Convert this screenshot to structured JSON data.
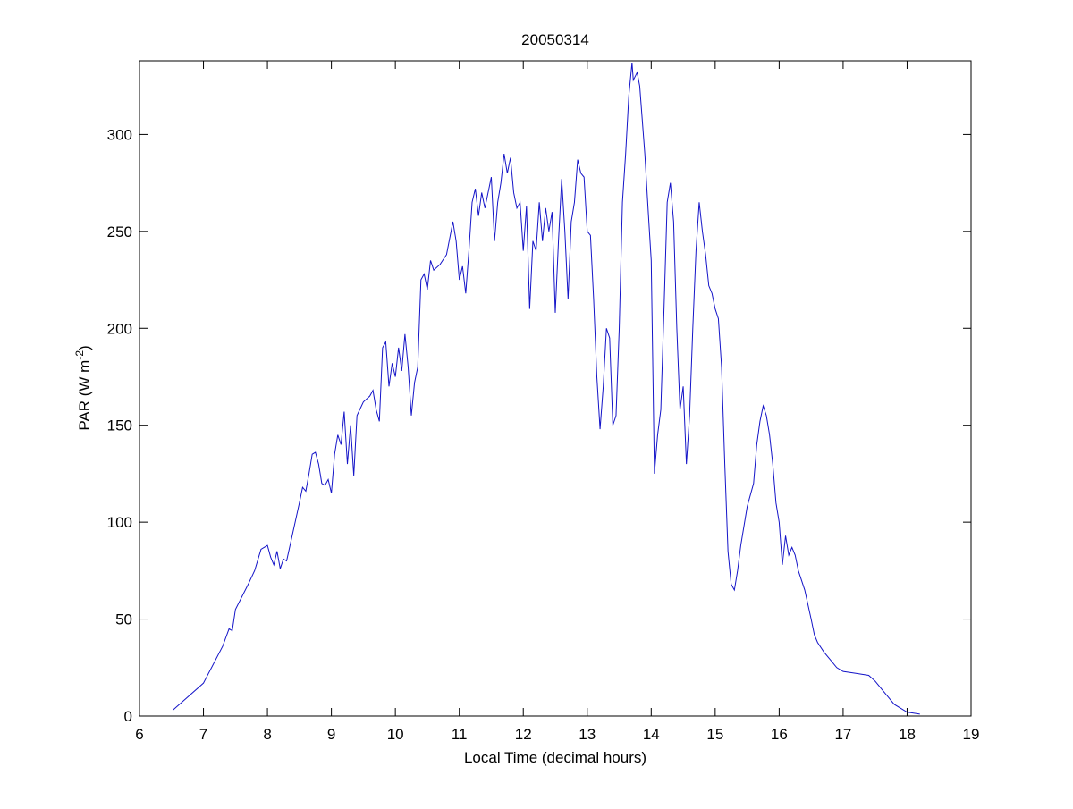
{
  "chart_data": {
    "type": "line",
    "title": "20050314",
    "xlabel": "Local Time (decimal hours)",
    "ylabel": [
      "PAR (W m",
      "-2",
      ")"
    ],
    "color": "#1414c8",
    "xlim": [
      6,
      19
    ],
    "xticks": [
      6,
      7,
      8,
      9,
      10,
      11,
      12,
      13,
      14,
      15,
      16,
      17,
      18,
      19
    ],
    "ylim": [
      0,
      338
    ],
    "yticks": [
      0,
      50,
      100,
      150,
      200,
      250,
      300
    ],
    "grid": false,
    "box": true,
    "x": [
      6.52,
      7.0,
      7.3,
      7.4,
      7.45,
      7.5,
      7.7,
      7.8,
      7.9,
      8.0,
      8.05,
      8.1,
      8.15,
      8.2,
      8.25,
      8.3,
      8.4,
      8.5,
      8.55,
      8.6,
      8.65,
      8.7,
      8.75,
      8.8,
      8.85,
      8.9,
      8.95,
      9.0,
      9.05,
      9.1,
      9.15,
      9.2,
      9.25,
      9.3,
      9.35,
      9.4,
      9.5,
      9.6,
      9.65,
      9.7,
      9.75,
      9.8,
      9.85,
      9.9,
      9.95,
      10.0,
      10.05,
      10.1,
      10.15,
      10.2,
      10.25,
      10.3,
      10.35,
      10.4,
      10.45,
      10.5,
      10.55,
      10.6,
      10.7,
      10.8,
      10.9,
      10.95,
      11.0,
      11.05,
      11.1,
      11.15,
      11.2,
      11.25,
      11.3,
      11.35,
      11.4,
      11.5,
      11.55,
      11.6,
      11.65,
      11.7,
      11.75,
      11.8,
      11.85,
      11.9,
      11.95,
      12.0,
      12.05,
      12.1,
      12.15,
      12.2,
      12.25,
      12.3,
      12.35,
      12.4,
      12.45,
      12.5,
      12.55,
      12.6,
      12.65,
      12.7,
      12.75,
      12.8,
      12.85,
      12.9,
      12.95,
      13.0,
      13.05,
      13.1,
      13.15,
      13.2,
      13.25,
      13.3,
      13.35,
      13.4,
      13.45,
      13.5,
      13.55,
      13.6,
      13.65,
      13.7,
      13.72,
      13.78,
      13.82,
      13.9,
      13.95,
      14.0,
      14.05,
      14.1,
      14.15,
      14.2,
      14.25,
      14.3,
      14.35,
      14.4,
      14.45,
      14.5,
      14.55,
      14.6,
      14.65,
      14.7,
      14.75,
      14.8,
      14.85,
      14.9,
      14.95,
      15.0,
      15.05,
      15.1,
      15.15,
      15.2,
      15.25,
      15.3,
      15.35,
      15.4,
      15.5,
      15.6,
      15.65,
      15.7,
      15.75,
      15.8,
      15.85,
      15.9,
      15.95,
      16.0,
      16.05,
      16.1,
      16.15,
      16.2,
      16.25,
      16.3,
      16.4,
      16.5,
      16.55,
      16.6,
      16.7,
      16.8,
      16.9,
      17.0,
      17.2,
      17.4,
      17.5,
      17.6,
      17.7,
      17.8,
      17.9,
      18.0,
      18.2
    ],
    "values": [
      3,
      17,
      36,
      45,
      44,
      55,
      68,
      75,
      86,
      88,
      82,
      78,
      85,
      76,
      81,
      80,
      95,
      110,
      118,
      116,
      125,
      135,
      136,
      130,
      120,
      119,
      122,
      115,
      135,
      145,
      140,
      157,
      130,
      150,
      124,
      155,
      162,
      165,
      168,
      158,
      152,
      190,
      193,
      170,
      182,
      175,
      190,
      178,
      197,
      180,
      155,
      172,
      180,
      225,
      228,
      220,
      235,
      230,
      233,
      238,
      255,
      245,
      225,
      232,
      218,
      240,
      265,
      272,
      258,
      270,
      262,
      278,
      245,
      265,
      275,
      290,
      280,
      288,
      270,
      262,
      265,
      240,
      263,
      210,
      245,
      240,
      265,
      245,
      262,
      250,
      260,
      208,
      245,
      277,
      250,
      215,
      255,
      265,
      287,
      280,
      278,
      250,
      248,
      215,
      175,
      148,
      170,
      200,
      195,
      150,
      155,
      200,
      265,
      290,
      320,
      337,
      328,
      332,
      325,
      290,
      262,
      235,
      125,
      145,
      158,
      210,
      265,
      275,
      255,
      200,
      158,
      170,
      130,
      155,
      200,
      240,
      265,
      250,
      238,
      222,
      218,
      210,
      205,
      180,
      130,
      85,
      68,
      65,
      75,
      88,
      108,
      120,
      140,
      152,
      160,
      155,
      145,
      130,
      110,
      100,
      78,
      93,
      83,
      87,
      83,
      75,
      65,
      50,
      42,
      38,
      33,
      29,
      25,
      23,
      22,
      21,
      18,
      14,
      10,
      6,
      4,
      2,
      1
    ]
  }
}
